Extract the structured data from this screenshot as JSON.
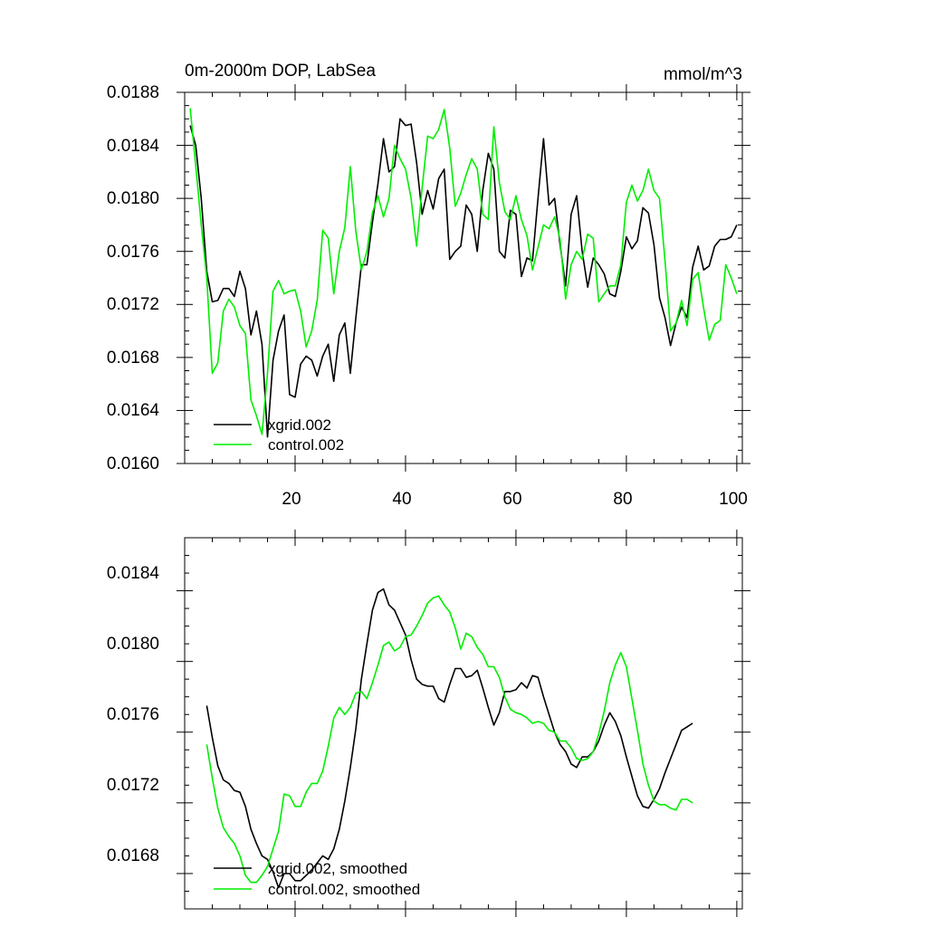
{
  "colors": {
    "xgrid": "#000000",
    "control": "#00ee00"
  },
  "chart_data": [
    {
      "type": "line",
      "title": "0m-2000m DOP, LabSea",
      "units": "mmol/m^3",
      "xlim": [
        0,
        101
      ],
      "ylim": [
        0.016,
        0.0188
      ],
      "xticks": [
        20,
        40,
        60,
        80,
        100
      ],
      "xtick_labels": [
        "20",
        "40",
        "60",
        "80",
        "100"
      ],
      "yticks": [
        0.016,
        0.0164,
        0.0168,
        0.0172,
        0.0176,
        0.018,
        0.0184,
        0.0188
      ],
      "ytick_labels": [
        "0.0160",
        "0.0164",
        "0.0168",
        "0.0172",
        "0.0176",
        "0.0180",
        "0.0184",
        "0.0188"
      ],
      "legend_position": "bottom-left",
      "series": [
        {
          "name": "xgrid.002",
          "color_key": "xgrid",
          "x_start": 1,
          "values": [
            0.01855,
            0.0184,
            0.018,
            0.01745,
            0.01722,
            0.01723,
            0.01732,
            0.01732,
            0.01726,
            0.01745,
            0.01732,
            0.01697,
            0.01715,
            0.0169,
            0.0162,
            0.01678,
            0.017,
            0.01712,
            0.01652,
            0.0165,
            0.01675,
            0.01681,
            0.01678,
            0.01666,
            0.01681,
            0.0169,
            0.01662,
            0.01697,
            0.01706,
            0.01668,
            0.0171,
            0.0175,
            0.0175,
            0.01782,
            0.01811,
            0.01845,
            0.0182,
            0.01824,
            0.0186,
            0.01855,
            0.01856,
            0.01827,
            0.01788,
            0.01806,
            0.01792,
            0.01815,
            0.01822,
            0.01754,
            0.0176,
            0.01764,
            0.01795,
            0.01788,
            0.0176,
            0.01806,
            0.01834,
            0.01822,
            0.0176,
            0.01755,
            0.01791,
            0.01788,
            0.01741,
            0.01755,
            0.01753,
            0.018,
            0.01845,
            0.01795,
            0.018,
            0.01765,
            0.01734,
            0.01788,
            0.01802,
            0.0176,
            0.01733,
            0.01755,
            0.0175,
            0.01743,
            0.01728,
            0.01726,
            0.01745,
            0.01771,
            0.01762,
            0.01768,
            0.01793,
            0.01789,
            0.01765,
            0.01725,
            0.0171,
            0.01689,
            0.01706,
            0.01718,
            0.0171,
            0.01748,
            0.01764,
            0.01746,
            0.01749,
            0.01764,
            0.01769,
            0.01769,
            0.01771,
            0.0178
          ]
        },
        {
          "name": "control.002",
          "color_key": "control",
          "x_start": 1,
          "values": [
            0.01868,
            0.01825,
            0.0178,
            0.0174,
            0.01668,
            0.01676,
            0.01715,
            0.01724,
            0.01718,
            0.01704,
            0.01698,
            0.01648,
            0.01636,
            0.01622,
            0.01668,
            0.0173,
            0.01738,
            0.01728,
            0.0173,
            0.01731,
            0.01715,
            0.01688,
            0.017,
            0.01723,
            0.01776,
            0.0177,
            0.01728,
            0.0176,
            0.01778,
            0.01824,
            0.01775,
            0.01746,
            0.0176,
            0.01789,
            0.01802,
            0.01786,
            0.018,
            0.0184,
            0.0183,
            0.01822,
            0.018,
            0.01764,
            0.01808,
            0.01847,
            0.01845,
            0.01852,
            0.01867,
            0.01838,
            0.01794,
            0.01804,
            0.01818,
            0.0183,
            0.01822,
            0.01788,
            0.01784,
            0.01854,
            0.01812,
            0.0179,
            0.01784,
            0.01802,
            0.01784,
            0.01772,
            0.01746,
            0.01763,
            0.0178,
            0.01777,
            0.01786,
            0.01769,
            0.01724,
            0.0175,
            0.0176,
            0.01754,
            0.01773,
            0.0177,
            0.01722,
            0.01728,
            0.01734,
            0.01734,
            0.0175,
            0.01797,
            0.0181,
            0.01798,
            0.01806,
            0.01822,
            0.01806,
            0.018,
            0.01753,
            0.017,
            0.01706,
            0.01723,
            0.01704,
            0.01739,
            0.01744,
            0.01717,
            0.01693,
            0.01705,
            0.01708,
            0.0175,
            0.0174,
            0.01728
          ]
        }
      ]
    },
    {
      "type": "line",
      "title": "",
      "xlim": [
        0,
        101
      ],
      "ylim": [
        0.0166,
        0.0187
      ],
      "xticks": [
        20,
        40,
        60,
        80,
        100
      ],
      "yticks": [
        0.0168,
        0.0172,
        0.0176,
        0.018,
        0.0184
      ],
      "ytick_labels": [
        "0.0168",
        "0.0172",
        "0.0176",
        "0.0180",
        "0.0184"
      ],
      "legend_position": "bottom-left",
      "series": [
        {
          "name": "xgrid.002, smoothed",
          "color_key": "xgrid",
          "x_start": 4,
          "values": [
            0.01775,
            0.01757,
            0.01741,
            0.01733,
            0.01731,
            0.01727,
            0.01726,
            0.01718,
            0.01705,
            0.01697,
            0.0169,
            0.01688,
            0.01681,
            0.01672,
            0.0168,
            0.0168,
            0.01676,
            0.01676,
            0.01679,
            0.01682,
            0.01686,
            0.0169,
            0.01688,
            0.01694,
            0.01705,
            0.01721,
            0.0174,
            0.01762,
            0.0179,
            0.0181,
            0.01829,
            0.01839,
            0.01841,
            0.01832,
            0.01829,
            0.01822,
            0.01815,
            0.01801,
            0.0179,
            0.01787,
            0.01786,
            0.01786,
            0.01779,
            0.01777,
            0.01787,
            0.01796,
            0.01796,
            0.01791,
            0.01792,
            0.01795,
            0.01785,
            0.01774,
            0.01764,
            0.01771,
            0.01783,
            0.01783,
            0.01784,
            0.01788,
            0.01785,
            0.01792,
            0.01791,
            0.0178,
            0.0177,
            0.0176,
            0.01753,
            0.01749,
            0.01742,
            0.0174,
            0.01746,
            0.01746,
            0.01749,
            0.01755,
            0.01764,
            0.01771,
            0.01766,
            0.01758,
            0.01746,
            0.01735,
            0.01724,
            0.01718,
            0.01717,
            0.01722,
            0.01728,
            0.01737,
            0.01745,
            0.01753,
            0.01761,
            0.01763,
            0.01765
          ]
        },
        {
          "name": "control.002, smoothed",
          "color_key": "control",
          "x_start": 4,
          "values": [
            0.01753,
            0.01734,
            0.01717,
            0.01706,
            0.01701,
            0.01697,
            0.0169,
            0.01679,
            0.01675,
            0.01675,
            0.01679,
            0.01684,
            0.01694,
            0.01704,
            0.01725,
            0.01724,
            0.01718,
            0.01718,
            0.01726,
            0.01731,
            0.01731,
            0.01738,
            0.01752,
            0.01768,
            0.01774,
            0.0177,
            0.01774,
            0.01782,
            0.01783,
            0.01779,
            0.01788,
            0.01798,
            0.01809,
            0.01811,
            0.01806,
            0.01808,
            0.01814,
            0.01815,
            0.0182,
            0.01826,
            0.01833,
            0.01836,
            0.01837,
            0.01832,
            0.01828,
            0.01819,
            0.01807,
            0.01816,
            0.01814,
            0.01808,
            0.01804,
            0.01797,
            0.01797,
            0.01791,
            0.0178,
            0.01773,
            0.01771,
            0.0177,
            0.01768,
            0.01765,
            0.01766,
            0.01765,
            0.01761,
            0.0176,
            0.01755,
            0.01755,
            0.01751,
            0.01745,
            0.01744,
            0.01745,
            0.01749,
            0.01759,
            0.01772,
            0.01788,
            0.01798,
            0.01805,
            0.01797,
            0.01779,
            0.01761,
            0.01742,
            0.0173,
            0.01721,
            0.01719,
            0.01719,
            0.01717,
            0.01716,
            0.01722,
            0.01722,
            0.0172
          ]
        }
      ]
    }
  ]
}
